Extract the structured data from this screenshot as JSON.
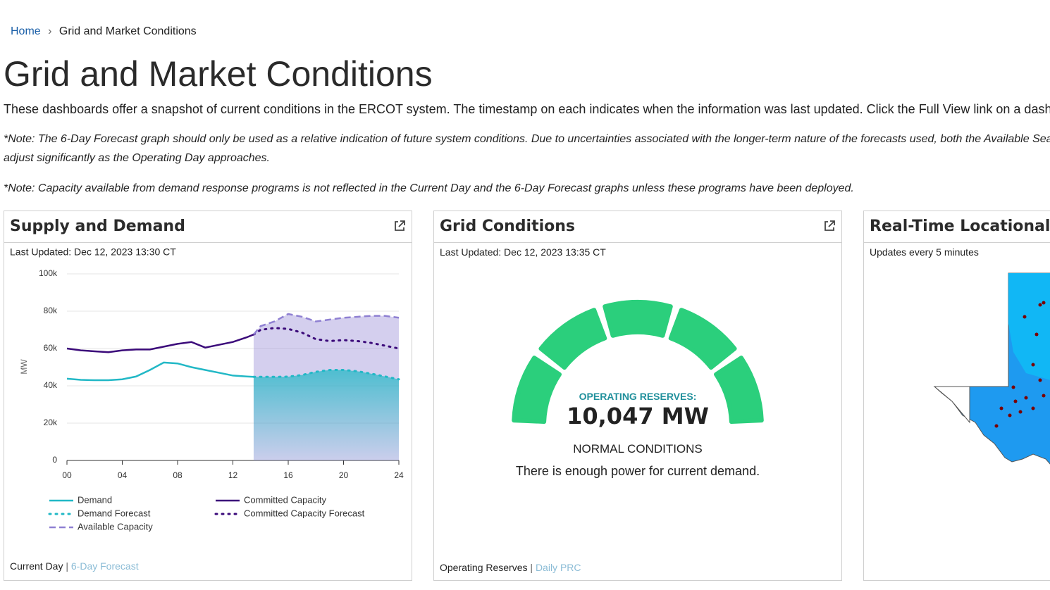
{
  "breadcrumb": {
    "home": "Home",
    "current": "Grid and Market Conditions"
  },
  "header": {
    "title": "Grid and Market Conditions",
    "intro": "These dashboards offer a snapshot of current conditions in the ERCOT system. The timestamp on each indicates when the information was last updated. Click the Full View link on a dash",
    "note1_line1": "*Note: The 6-Day Forecast graph should only be used as a relative indication of future system conditions. Due to uncertainties associated with the longer-term nature of the forecasts used, both the Available Sea",
    "note1_line2": "adjust significantly as the Operating Day approaches.",
    "note2": "*Note: Capacity available from demand response programs is not reflected in the Current Day and the 6-Day Forecast graphs unless these programs have been deployed."
  },
  "cards": [
    {
      "title": "Supply and Demand",
      "updated": "Last Updated: Dec 12, 2023 13:30 CT",
      "footer": [
        "Current Day",
        "6-Day Forecast"
      ],
      "separator": "|"
    },
    {
      "title": "Grid Conditions",
      "updated": "Last Updated: Dec 12, 2023 13:35 CT",
      "gauge_label": "OPERATING RESERVES:",
      "gauge_value": "10,047 MW",
      "status": "NORMAL CONDITIONS",
      "message": "There is enough power for current demand.",
      "footer": [
        "Operating Reserves",
        "Daily PRC"
      ],
      "separator": "|"
    },
    {
      "title": "Real-Time Locational P",
      "updated": "Updates every 5 minutes"
    }
  ],
  "chart_data": {
    "type": "line",
    "ylabel": "MW",
    "x": [
      0,
      1,
      2,
      3,
      4,
      5,
      6,
      7,
      8,
      9,
      10,
      11,
      12,
      13,
      13.5,
      14,
      15,
      16,
      17,
      18,
      19,
      20,
      21,
      22,
      23,
      24
    ],
    "series": [
      {
        "name": "Demand",
        "color": "#22b8c6",
        "dash": "solid",
        "values": [
          43800,
          43200,
          43000,
          43000,
          43500,
          45000,
          48500,
          52500,
          52000,
          50000,
          48500,
          47000,
          45500,
          45000,
          44800,
          null,
          null,
          null,
          null,
          null,
          null,
          null,
          null,
          null,
          null,
          null
        ]
      },
      {
        "name": "Demand Forecast",
        "color": "#22b8c6",
        "dash": "dotted",
        "area": true,
        "values": [
          null,
          null,
          null,
          null,
          null,
          null,
          null,
          null,
          null,
          null,
          null,
          null,
          null,
          null,
          44800,
          44800,
          44800,
          44900,
          45800,
          47500,
          48500,
          48500,
          47800,
          46500,
          45000,
          43500
        ]
      },
      {
        "name": "Committed Capacity",
        "color": "#3b0a7a",
        "dash": "solid",
        "values": [
          60000,
          59000,
          58500,
          58000,
          59000,
          59500,
          59500,
          61000,
          62500,
          63500,
          60500,
          62000,
          63500,
          66000,
          67500,
          null,
          null,
          null,
          null,
          null,
          null,
          null,
          null,
          null,
          null,
          null
        ]
      },
      {
        "name": "Committed Capacity Forecast",
        "color": "#3b0a7a",
        "dash": "dotted",
        "values": [
          null,
          null,
          null,
          null,
          null,
          null,
          null,
          null,
          null,
          null,
          null,
          null,
          null,
          null,
          67500,
          70000,
          71000,
          70500,
          68500,
          65000,
          64000,
          64500,
          64000,
          63000,
          61500,
          60000
        ]
      },
      {
        "name": "Available Capacity",
        "color": "#8f80d2",
        "dash": "dashed",
        "area": true,
        "values": [
          null,
          null,
          null,
          null,
          null,
          null,
          null,
          null,
          null,
          null,
          null,
          null,
          null,
          null,
          67500,
          72000,
          74500,
          78500,
          77000,
          74500,
          75500,
          76500,
          77000,
          77500,
          77500,
          76500
        ]
      }
    ],
    "xlim": [
      0,
      24
    ],
    "ylim": [
      0,
      100000
    ],
    "xticks": [
      {
        "value": 0,
        "label": "00"
      },
      {
        "value": 4,
        "label": "04"
      },
      {
        "value": 8,
        "label": "08"
      },
      12,
      16,
      20,
      24
    ],
    "yticks": [
      {
        "value": 0,
        "label": "0"
      },
      {
        "value": 20000,
        "label": "20k"
      },
      {
        "value": 40000,
        "label": "40k"
      },
      {
        "value": 60000,
        "label": "60k"
      },
      {
        "value": 80000,
        "label": "80k"
      },
      {
        "value": 100000,
        "label": "100k"
      }
    ],
    "grid": true
  }
}
